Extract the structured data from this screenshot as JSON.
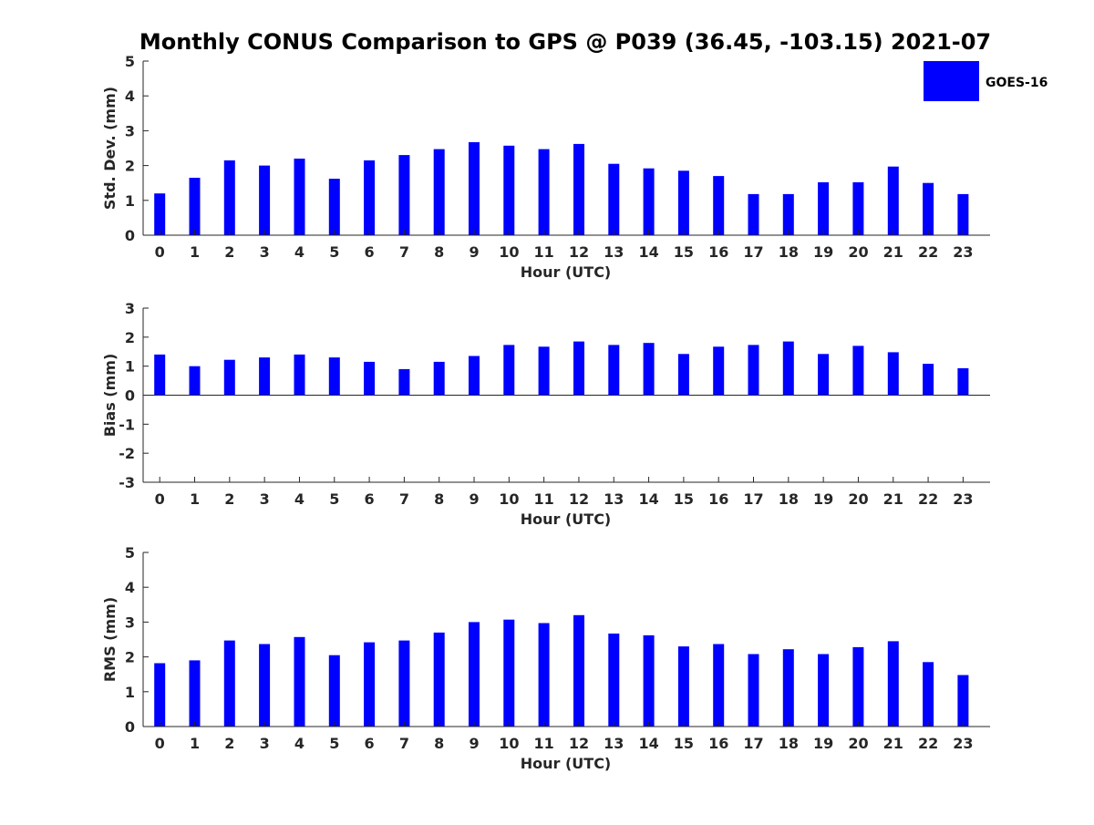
{
  "title": "Monthly CONUS Comparison to GPS @ P039 (36.45, -103.15) 2021-07",
  "colors": {
    "bar": "#0000FF",
    "axis": "#262626",
    "background": "#FFFFFF"
  },
  "legend": {
    "label": "GOES-16",
    "placement": "top-right"
  },
  "chart_data": [
    {
      "type": "bar",
      "xlabel": "Hour (UTC)",
      "ylabel": "Std. Dev. (mm)",
      "ylim": [
        0,
        5
      ],
      "yticks": [
        0,
        1,
        2,
        3,
        4,
        5
      ],
      "grid": false,
      "categories": [
        "0",
        "1",
        "2",
        "3",
        "4",
        "5",
        "6",
        "7",
        "8",
        "9",
        "10",
        "11",
        "12",
        "13",
        "14",
        "15",
        "16",
        "17",
        "18",
        "19",
        "20",
        "21",
        "22",
        "23"
      ],
      "series": [
        {
          "name": "GOES-16",
          "values": [
            1.2,
            1.65,
            2.15,
            2.0,
            2.2,
            1.62,
            2.15,
            2.3,
            2.47,
            2.67,
            2.57,
            2.47,
            2.62,
            2.05,
            1.92,
            1.85,
            1.7,
            1.18,
            1.18,
            1.52,
            1.52,
            1.97,
            1.5,
            1.18
          ]
        }
      ]
    },
    {
      "type": "bar",
      "xlabel": "Hour (UTC)",
      "ylabel": "Bias (mm)",
      "ylim": [
        -3,
        3
      ],
      "yticks": [
        -3,
        -2,
        -1,
        0,
        1,
        2,
        3
      ],
      "grid": false,
      "categories": [
        "0",
        "1",
        "2",
        "3",
        "4",
        "5",
        "6",
        "7",
        "8",
        "9",
        "10",
        "11",
        "12",
        "13",
        "14",
        "15",
        "16",
        "17",
        "18",
        "19",
        "20",
        "21",
        "22",
        "23"
      ],
      "series": [
        {
          "name": "GOES-16",
          "values": [
            1.4,
            1.0,
            1.22,
            1.3,
            1.4,
            1.3,
            1.15,
            0.9,
            1.15,
            1.35,
            1.73,
            1.67,
            1.85,
            1.73,
            1.8,
            1.42,
            1.67,
            1.73,
            1.85,
            1.42,
            1.7,
            1.48,
            1.08,
            0.93
          ]
        }
      ]
    },
    {
      "type": "bar",
      "xlabel": "Hour (UTC)",
      "ylabel": "RMS (mm)",
      "ylim": [
        0,
        5
      ],
      "yticks": [
        0,
        1,
        2,
        3,
        4,
        5
      ],
      "grid": false,
      "categories": [
        "0",
        "1",
        "2",
        "3",
        "4",
        "5",
        "6",
        "7",
        "8",
        "9",
        "10",
        "11",
        "12",
        "13",
        "14",
        "15",
        "16",
        "17",
        "18",
        "19",
        "20",
        "21",
        "22",
        "23"
      ],
      "series": [
        {
          "name": "GOES-16",
          "values": [
            1.82,
            1.9,
            2.47,
            2.37,
            2.57,
            2.05,
            2.42,
            2.47,
            2.7,
            3.0,
            3.07,
            2.97,
            3.2,
            2.67,
            2.62,
            2.3,
            2.37,
            2.08,
            2.22,
            2.08,
            2.28,
            2.45,
            1.85,
            1.48
          ]
        }
      ]
    }
  ]
}
